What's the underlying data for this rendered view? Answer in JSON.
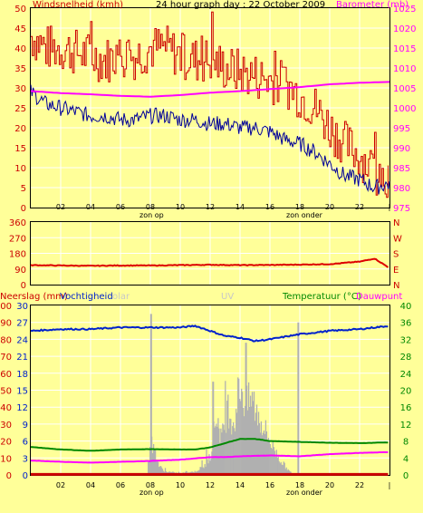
{
  "colors": {
    "background": "#ffff99",
    "grid": "#ffffff",
    "wind": "#cc0000",
    "gust_avg": "#000099",
    "barometer": "#ff00ff",
    "direction": "#dd0000",
    "humidity": "#0022cc",
    "temperature": "#008800",
    "dewpoint": "#ff00ff",
    "rain": "#cc0000",
    "solar": "#b0b0b0",
    "uv": "#d0d0d0"
  },
  "top_chart": {
    "title": "24 hour graph day : 22 October 2009",
    "left_label": "Windsnelheid (kmh)",
    "right_label": "Barometer (mb)",
    "left_ticks": [
      "50",
      "45",
      "40",
      "35",
      "30",
      "25",
      "20",
      "15",
      "10",
      "5",
      "0"
    ],
    "right_ticks": [
      "1025",
      "1020",
      "1015",
      "1010",
      "1005",
      "1000",
      "995",
      "990",
      "985",
      "980",
      "975"
    ],
    "x_ticks": [
      "02",
      "04",
      "06",
      "08",
      "10",
      "12",
      "14",
      "16",
      "18",
      "20",
      "22",
      "|"
    ],
    "sunrise_label": "zon op",
    "sunset_label": "zon onder"
  },
  "mid_chart": {
    "left_ticks": [
      "360",
      "270",
      "180",
      "90",
      "0"
    ],
    "right_ticks": [
      "N",
      "W",
      "S",
      "E",
      "N"
    ]
  },
  "bottom_chart": {
    "left_label_a": "Neerslag (mm)",
    "left_label_b": "Vochtigheid",
    "solar_label": "olar",
    "uv_label": "UV",
    "right_label_a": "Temperatuur (°C)",
    "right_label_b": "Dauwpunt",
    "rain_ticks": [
      "100",
      "90",
      "80",
      "70",
      "60",
      "50",
      "40",
      "30",
      "20",
      "10",
      "0"
    ],
    "humidity_ticks": [
      "30",
      "27",
      "24",
      "21",
      "18",
      "15",
      "12",
      "9",
      "6",
      "3",
      "0"
    ],
    "temp_ticks": [
      "40",
      "36",
      "32",
      "28",
      "24",
      "20",
      "16",
      "12",
      "8",
      "4",
      "0"
    ],
    "x_ticks": [
      "02",
      "04",
      "06",
      "08",
      "10",
      "12",
      "14",
      "16",
      "18",
      "20",
      "22",
      "|"
    ],
    "sunrise_label": "zon op",
    "sunset_label": "zon onder"
  },
  "chart_data": [
    {
      "type": "line",
      "x_range_hours": [
        0,
        24
      ],
      "series": [
        {
          "name": "Windsnelheid (kmh)",
          "axis": "left",
          "ylim": [
            0,
            50
          ],
          "x": [
            0,
            1,
            2,
            3,
            4,
            5,
            6,
            7,
            8,
            9,
            10,
            11,
            12,
            13,
            14,
            15,
            16,
            17,
            18,
            19,
            20,
            21,
            22,
            23,
            24
          ],
          "values": [
            43,
            40,
            40,
            39,
            38,
            37,
            38,
            38,
            40,
            40,
            38,
            37,
            37,
            35,
            34,
            33,
            32,
            31,
            28,
            25,
            20,
            16,
            13,
            9,
            8
          ]
        },
        {
          "name": "",
          "axis": "left",
          "ylim": [
            0,
            50
          ],
          "x": [
            0,
            1,
            2,
            3,
            4,
            5,
            6,
            7,
            8,
            9,
            10,
            11,
            12,
            13,
            14,
            15,
            16,
            17,
            18,
            19,
            20,
            21,
            22,
            23,
            24
          ],
          "values": [
            29,
            26,
            25,
            24,
            23,
            23,
            22,
            22,
            23,
            23,
            22,
            22,
            21,
            21,
            20,
            20,
            19,
            17,
            16,
            14,
            11,
            8,
            7,
            5,
            6
          ]
        },
        {
          "name": "Barometer (mb)",
          "axis": "right",
          "ylim": [
            975,
            1025
          ],
          "x": [
            0,
            2,
            4,
            6,
            8,
            10,
            12,
            14,
            16,
            18,
            20,
            22,
            24
          ],
          "values": [
            1004.2,
            1003.7,
            1003.4,
            1003.0,
            1002.8,
            1003.2,
            1003.8,
            1004.2,
            1004.7,
            1005.2,
            1005.9,
            1006.3,
            1006.5
          ]
        }
      ]
    },
    {
      "type": "line",
      "x_range_hours": [
        0,
        24
      ],
      "ylim": [
        0,
        360
      ],
      "series": [
        {
          "name": "",
          "x": [
            0,
            2,
            4,
            6,
            8,
            10,
            12,
            14,
            16,
            18,
            20,
            22,
            23,
            24
          ],
          "values": [
            112,
            110,
            108,
            110,
            110,
            112,
            114,
            112,
            113,
            115,
            118,
            132,
            150,
            95
          ]
        }
      ]
    },
    {
      "type": "line",
      "x_range_hours": [
        0,
        24
      ],
      "series": [
        {
          "name": "Vochtigheid",
          "axis": "left_humidity",
          "ylim": [
            0,
            100
          ],
          "x": [
            0,
            2,
            4,
            6,
            8,
            10,
            11,
            12,
            13,
            14,
            15,
            16,
            18,
            20,
            22,
            24
          ],
          "values": [
            85,
            86,
            86,
            87,
            87,
            87,
            88,
            85,
            82,
            81,
            79,
            80,
            83,
            85,
            86,
            88
          ]
        },
        {
          "name": "Temperatuur (°C)",
          "axis": "right",
          "ylim": [
            0,
            40
          ],
          "x": [
            0,
            2,
            4,
            6,
            8,
            10,
            11,
            12,
            13,
            14,
            15,
            16,
            18,
            20,
            22,
            24
          ],
          "values": [
            6.6,
            6.0,
            5.7,
            6.0,
            6.1,
            6.0,
            6.0,
            6.5,
            7.5,
            8.5,
            8.5,
            8.0,
            7.8,
            7.6,
            7.5,
            7.7
          ]
        },
        {
          "name": "Dauwpunt",
          "axis": "right",
          "ylim": [
            0,
            40
          ],
          "x": [
            0,
            2,
            4,
            6,
            8,
            10,
            11,
            12,
            13,
            14,
            15,
            16,
            18,
            20,
            22,
            24
          ],
          "values": [
            3.4,
            3.1,
            2.9,
            3.1,
            3.3,
            3.6,
            3.9,
            4.2,
            4.2,
            4.4,
            4.5,
            4.6,
            4.4,
            4.9,
            5.2,
            5.4
          ]
        },
        {
          "name": "Neerslag (mm)",
          "axis": "left_rain",
          "ylim": [
            0,
            30
          ],
          "x": [
            0,
            24
          ],
          "values": [
            0.1,
            0.1
          ]
        }
      ]
    }
  ]
}
